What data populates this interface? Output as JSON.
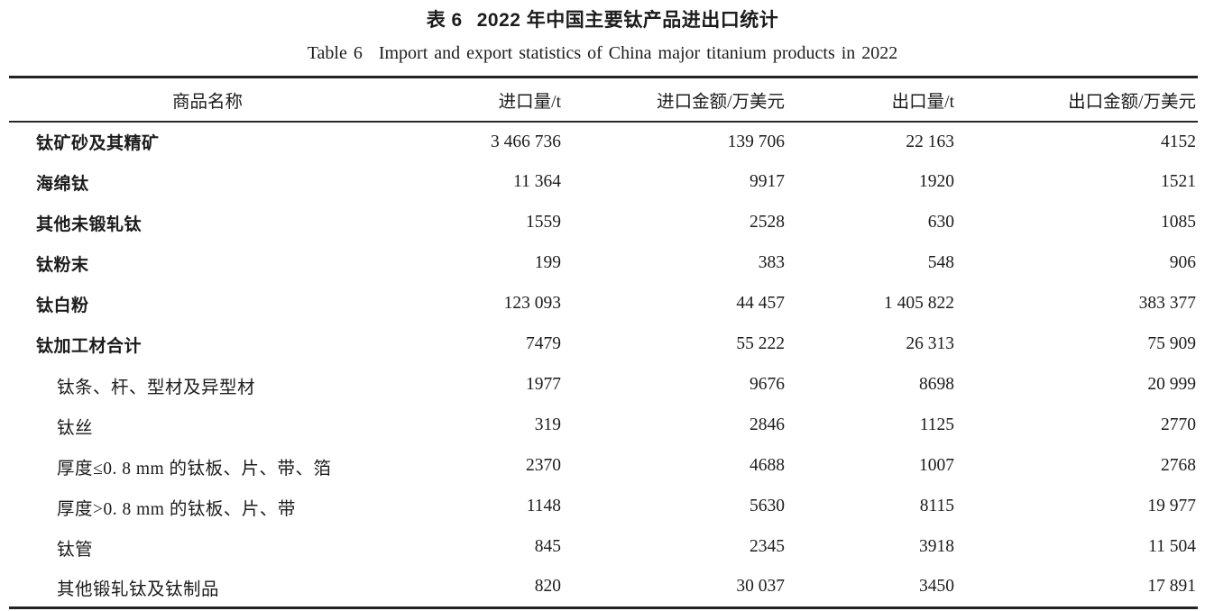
{
  "page": {
    "background": "#ffffff",
    "text_color": "#1c1c1c",
    "rule_color": "#222222"
  },
  "title": {
    "zh_label": "表 6",
    "zh_text": "2022 年中国主要钛产品进出口统计",
    "en_label": "Table 6",
    "en_text": "Import and export statistics of China major titanium products in 2022"
  },
  "table": {
    "columns": [
      {
        "key": "name",
        "label": "商品名称"
      },
      {
        "key": "import_qty",
        "label": "进口量/t"
      },
      {
        "key": "import_value",
        "label": "进口金额/万美元"
      },
      {
        "key": "export_qty",
        "label": "出口量/t"
      },
      {
        "key": "export_value",
        "label": "出口金额/万美元"
      }
    ],
    "rows": [
      {
        "style": "group",
        "name": "钛矿砂及其精矿",
        "import_qty": "3 466 736",
        "import_value": "139 706",
        "export_qty": "22 163",
        "export_value": "4152"
      },
      {
        "style": "group",
        "name": "海绵钛",
        "import_qty": "11 364",
        "import_value": "9917",
        "export_qty": "1920",
        "export_value": "1521"
      },
      {
        "style": "group",
        "name": "其他未锻轧钛",
        "import_qty": "1559",
        "import_value": "2528",
        "export_qty": "630",
        "export_value": "1085"
      },
      {
        "style": "group",
        "name": "钛粉末",
        "import_qty": "199",
        "import_value": "383",
        "export_qty": "548",
        "export_value": "906"
      },
      {
        "style": "group",
        "name": "钛白粉",
        "import_qty": "123 093",
        "import_value": "44 457",
        "export_qty": "1 405 822",
        "export_value": "383 377"
      },
      {
        "style": "group",
        "name": "钛加工材合计",
        "import_qty": "7479",
        "import_value": "55 222",
        "export_qty": "26 313",
        "export_value": "75 909"
      },
      {
        "style": "sub",
        "name": "钛条、杆、型材及异型材",
        "import_qty": "1977",
        "import_value": "9676",
        "export_qty": "8698",
        "export_value": "20 999"
      },
      {
        "style": "sub",
        "name": "钛丝",
        "import_qty": "319",
        "import_value": "2846",
        "export_qty": "1125",
        "export_value": "2770"
      },
      {
        "style": "sub",
        "name": "厚度≤0. 8 mm 的钛板、片、带、箔",
        "import_qty": "2370",
        "import_value": "4688",
        "export_qty": "1007",
        "export_value": "2768"
      },
      {
        "style": "sub",
        "name": "厚度>0. 8 mm 的钛板、片、带",
        "import_qty": "1148",
        "import_value": "5630",
        "export_qty": "8115",
        "export_value": "19 977"
      },
      {
        "style": "sub",
        "name": "钛管",
        "import_qty": "845",
        "import_value": "2345",
        "export_qty": "3918",
        "export_value": "11 504"
      },
      {
        "style": "sub",
        "name": "其他锻轧钛及钛制品",
        "import_qty": "820",
        "import_value": "30 037",
        "export_qty": "3450",
        "export_value": "17 891"
      }
    ]
  },
  "chart_data": {
    "type": "table",
    "title": "表 6 2022 年中国主要钛产品进出口统计 / Table 6 Import and export statistics of China major titanium products in 2022",
    "columns": [
      "商品名称",
      "进口量/t",
      "进口金额/万美元",
      "出口量/t",
      "出口金额/万美元"
    ],
    "rows": [
      [
        "钛矿砂及其精矿",
        3466736,
        139706,
        22163,
        4152
      ],
      [
        "海绵钛",
        11364,
        9917,
        1920,
        1521
      ],
      [
        "其他未锻轧钛",
        1559,
        2528,
        630,
        1085
      ],
      [
        "钛粉末",
        199,
        383,
        548,
        906
      ],
      [
        "钛白粉",
        123093,
        44457,
        1405822,
        383377
      ],
      [
        "钛加工材合计",
        7479,
        55222,
        26313,
        75909
      ],
      [
        "钛条、杆、型材及异型材",
        1977,
        9676,
        8698,
        20999
      ],
      [
        "钛丝",
        319,
        2846,
        1125,
        2770
      ],
      [
        "厚度≤0.8 mm 的钛板、片、带、箔",
        2370,
        4688,
        1007,
        2768
      ],
      [
        "厚度>0.8 mm 的钛板、片、带",
        1148,
        5630,
        8115,
        19977
      ],
      [
        "钛管",
        845,
        2345,
        3918,
        11504
      ],
      [
        "其他锻轧钛及钛制品",
        820,
        30037,
        3450,
        17891
      ]
    ]
  }
}
